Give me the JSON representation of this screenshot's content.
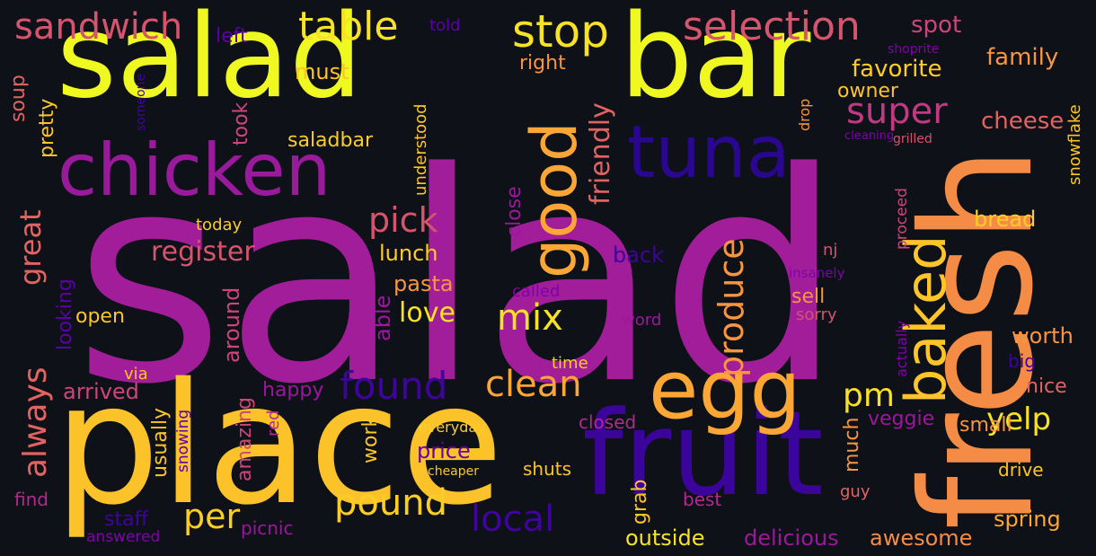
{
  "words": [
    {
      "key": "salad",
      "text": "salad",
      "color": "#a21d9a"
    },
    {
      "key": "place",
      "text": "place",
      "color": "#fcc229"
    },
    {
      "key": "fresh",
      "text": "fresh",
      "color": "#f58c46"
    },
    {
      "key": "salad-bar-salad",
      "text": "salad",
      "color": "#eff821"
    },
    {
      "key": "salad-bar-bar",
      "text": "bar",
      "color": "#eff821"
    },
    {
      "key": "fruit",
      "text": "fruit",
      "color": "#3b049a"
    },
    {
      "key": "chicken",
      "text": "chicken",
      "color": "#9a1a9c"
    },
    {
      "key": "tuna",
      "text": "tuna",
      "color": "#2a078f"
    },
    {
      "key": "egg",
      "text": "egg",
      "color": "#fca636"
    },
    {
      "key": "good",
      "text": "good",
      "color": "#fca636"
    },
    {
      "key": "baked",
      "text": "baked",
      "color": "#fdc527"
    },
    {
      "key": "stop",
      "text": "stop",
      "color": "#f7e225"
    },
    {
      "key": "table",
      "text": "table",
      "color": "#f7e225"
    },
    {
      "key": "selection",
      "text": "selection",
      "color": "#d5546e"
    },
    {
      "key": "sandwich",
      "text": "sandwich",
      "color": "#d5546e"
    },
    {
      "key": "super",
      "text": "super",
      "color": "#c03a83"
    },
    {
      "key": "pick",
      "text": "pick",
      "color": "#d5546e"
    },
    {
      "key": "produce",
      "text": "produce",
      "color": "#f89540"
    },
    {
      "key": "mix",
      "text": "mix",
      "color": "#f7e225"
    },
    {
      "key": "found",
      "text": "found",
      "color": "#3e049c"
    },
    {
      "key": "clean",
      "text": "clean",
      "color": "#fca636"
    },
    {
      "key": "pound",
      "text": "pound",
      "color": "#fcce25"
    },
    {
      "key": "local",
      "text": "local",
      "color": "#3e049c"
    },
    {
      "key": "per",
      "text": "per",
      "color": "#fcce25"
    },
    {
      "key": "always",
      "text": "always",
      "color": "#e16462"
    },
    {
      "key": "great",
      "text": "great",
      "color": "#e16462"
    },
    {
      "key": "yelp",
      "text": "yelp",
      "color": "#f7e225"
    },
    {
      "key": "pm",
      "text": "pm",
      "color": "#f7e225"
    },
    {
      "key": "friendly",
      "text": "friendly",
      "color": "#e16462"
    },
    {
      "key": "register",
      "text": "register",
      "color": "#d5546e"
    },
    {
      "key": "love",
      "text": "love",
      "color": "#f7e225"
    },
    {
      "key": "favorite",
      "text": "favorite",
      "color": "#fcce25"
    },
    {
      "key": "family",
      "text": "family",
      "color": "#f89540"
    },
    {
      "key": "cheese",
      "text": "cheese",
      "color": "#e16462"
    },
    {
      "key": "spot",
      "text": "spot",
      "color": "#cc4778"
    },
    {
      "key": "owner",
      "text": "owner",
      "color": "#fdc527"
    },
    {
      "key": "must",
      "text": "must",
      "color": "#fdc527"
    },
    {
      "key": "right",
      "text": "right",
      "color": "#f89540"
    },
    {
      "key": "left",
      "text": "left",
      "color": "#5c01a6"
    },
    {
      "key": "told",
      "text": "told",
      "color": "#5c01a6"
    },
    {
      "key": "saladbar",
      "text": "saladbar",
      "color": "#fcce25"
    },
    {
      "key": "took",
      "text": "took",
      "color": "#cc4778"
    },
    {
      "key": "pretty",
      "text": "pretty",
      "color": "#fdc527"
    },
    {
      "key": "soup",
      "text": "soup",
      "color": "#e16462"
    },
    {
      "key": "someone",
      "text": "someone",
      "color": "#3e049c"
    },
    {
      "key": "shoprite",
      "text": "shoprite",
      "color": "#7e03a8"
    },
    {
      "key": "cleaning",
      "text": "cleaning",
      "color": "#7e03a8"
    },
    {
      "key": "grilled",
      "text": "grilled",
      "color": "#d5546e"
    },
    {
      "key": "snowflake",
      "text": "snowflake",
      "color": "#fdc527"
    },
    {
      "key": "drop",
      "text": "drop",
      "color": "#f89540"
    },
    {
      "key": "understood",
      "text": "understood",
      "color": "#fdc527"
    },
    {
      "key": "bread",
      "text": "bread",
      "color": "#fcce25"
    },
    {
      "key": "nj",
      "text": "nj",
      "color": "#d5546e"
    },
    {
      "key": "insanely",
      "text": "insanely",
      "color": "#7e03a8"
    },
    {
      "key": "proceed",
      "text": "proceed",
      "color": "#cc4778"
    },
    {
      "key": "close",
      "text": "close",
      "color": "#9c179e"
    },
    {
      "key": "today",
      "text": "today",
      "color": "#fcce25"
    },
    {
      "key": "lunch",
      "text": "lunch",
      "color": "#fcce25"
    },
    {
      "key": "back",
      "text": "back",
      "color": "#3e049c"
    },
    {
      "key": "pasta",
      "text": "pasta",
      "color": "#f89540"
    },
    {
      "key": "called",
      "text": "called",
      "color": "#7e03a8"
    },
    {
      "key": "sell",
      "text": "sell",
      "color": "#f89540"
    },
    {
      "key": "sorry",
      "text": "sorry",
      "color": "#d5546e"
    },
    {
      "key": "able",
      "text": "able",
      "color": "#9c179e"
    },
    {
      "key": "looking",
      "text": "looking",
      "color": "#5c01a6"
    },
    {
      "key": "open",
      "text": "open",
      "color": "#fdc527"
    },
    {
      "key": "around",
      "text": "around",
      "color": "#cc4778"
    },
    {
      "key": "word",
      "text": "word",
      "color": "#9c179e"
    },
    {
      "key": "actually",
      "text": "actually",
      "color": "#7e03a8"
    },
    {
      "key": "worth",
      "text": "worth",
      "color": "#f89540"
    },
    {
      "key": "big",
      "text": "big",
      "color": "#3e049c"
    },
    {
      "key": "nice",
      "text": "nice",
      "color": "#e16462"
    },
    {
      "key": "via",
      "text": "via",
      "color": "#fdc527"
    },
    {
      "key": "time",
      "text": "time",
      "color": "#fcce25"
    },
    {
      "key": "arrived",
      "text": "arrived",
      "color": "#cc4778"
    },
    {
      "key": "happy",
      "text": "happy",
      "color": "#9c179e"
    },
    {
      "key": "veggie",
      "text": "veggie",
      "color": "#9c179e"
    },
    {
      "key": "small",
      "text": "small",
      "color": "#f89540"
    },
    {
      "key": "usually",
      "text": "usually",
      "color": "#fdc527"
    },
    {
      "key": "snowing",
      "text": "snowing",
      "color": "#5c01a6"
    },
    {
      "key": "amazing",
      "text": "amazing",
      "color": "#cc4778"
    },
    {
      "key": "red",
      "text": "red",
      "color": "#b12a90"
    },
    {
      "key": "work",
      "text": "work",
      "color": "#fdc527"
    },
    {
      "key": "everyday",
      "text": "everyday",
      "color": "#fcce25"
    },
    {
      "key": "price",
      "text": "price",
      "color": "#6a00a8"
    },
    {
      "key": "closed",
      "text": "closed",
      "color": "#b12a90"
    },
    {
      "key": "much",
      "text": "much",
      "color": "#f89540"
    },
    {
      "key": "cheaper",
      "text": "cheaper",
      "color": "#fdc527"
    },
    {
      "key": "shuts",
      "text": "shuts",
      "color": "#fdc527"
    },
    {
      "key": "grab",
      "text": "grab",
      "color": "#fdc527"
    },
    {
      "key": "best",
      "text": "best",
      "color": "#b12a90"
    },
    {
      "key": "guy",
      "text": "guy",
      "color": "#e16462"
    },
    {
      "key": "drive",
      "text": "drive",
      "color": "#fdc527"
    },
    {
      "key": "find",
      "text": "find",
      "color": "#b12a90"
    },
    {
      "key": "staff",
      "text": "staff",
      "color": "#3e049c"
    },
    {
      "key": "picnic",
      "text": "picnic",
      "color": "#9c179e"
    },
    {
      "key": "answered",
      "text": "answered",
      "color": "#7e03a8"
    },
    {
      "key": "outside",
      "text": "outside",
      "color": "#f7e225"
    },
    {
      "key": "delicious",
      "text": "delicious",
      "color": "#9c179e"
    },
    {
      "key": "awesome",
      "text": "awesome",
      "color": "#f58c46"
    },
    {
      "key": "spring",
      "text": "spring",
      "color": "#fca636"
    }
  ]
}
